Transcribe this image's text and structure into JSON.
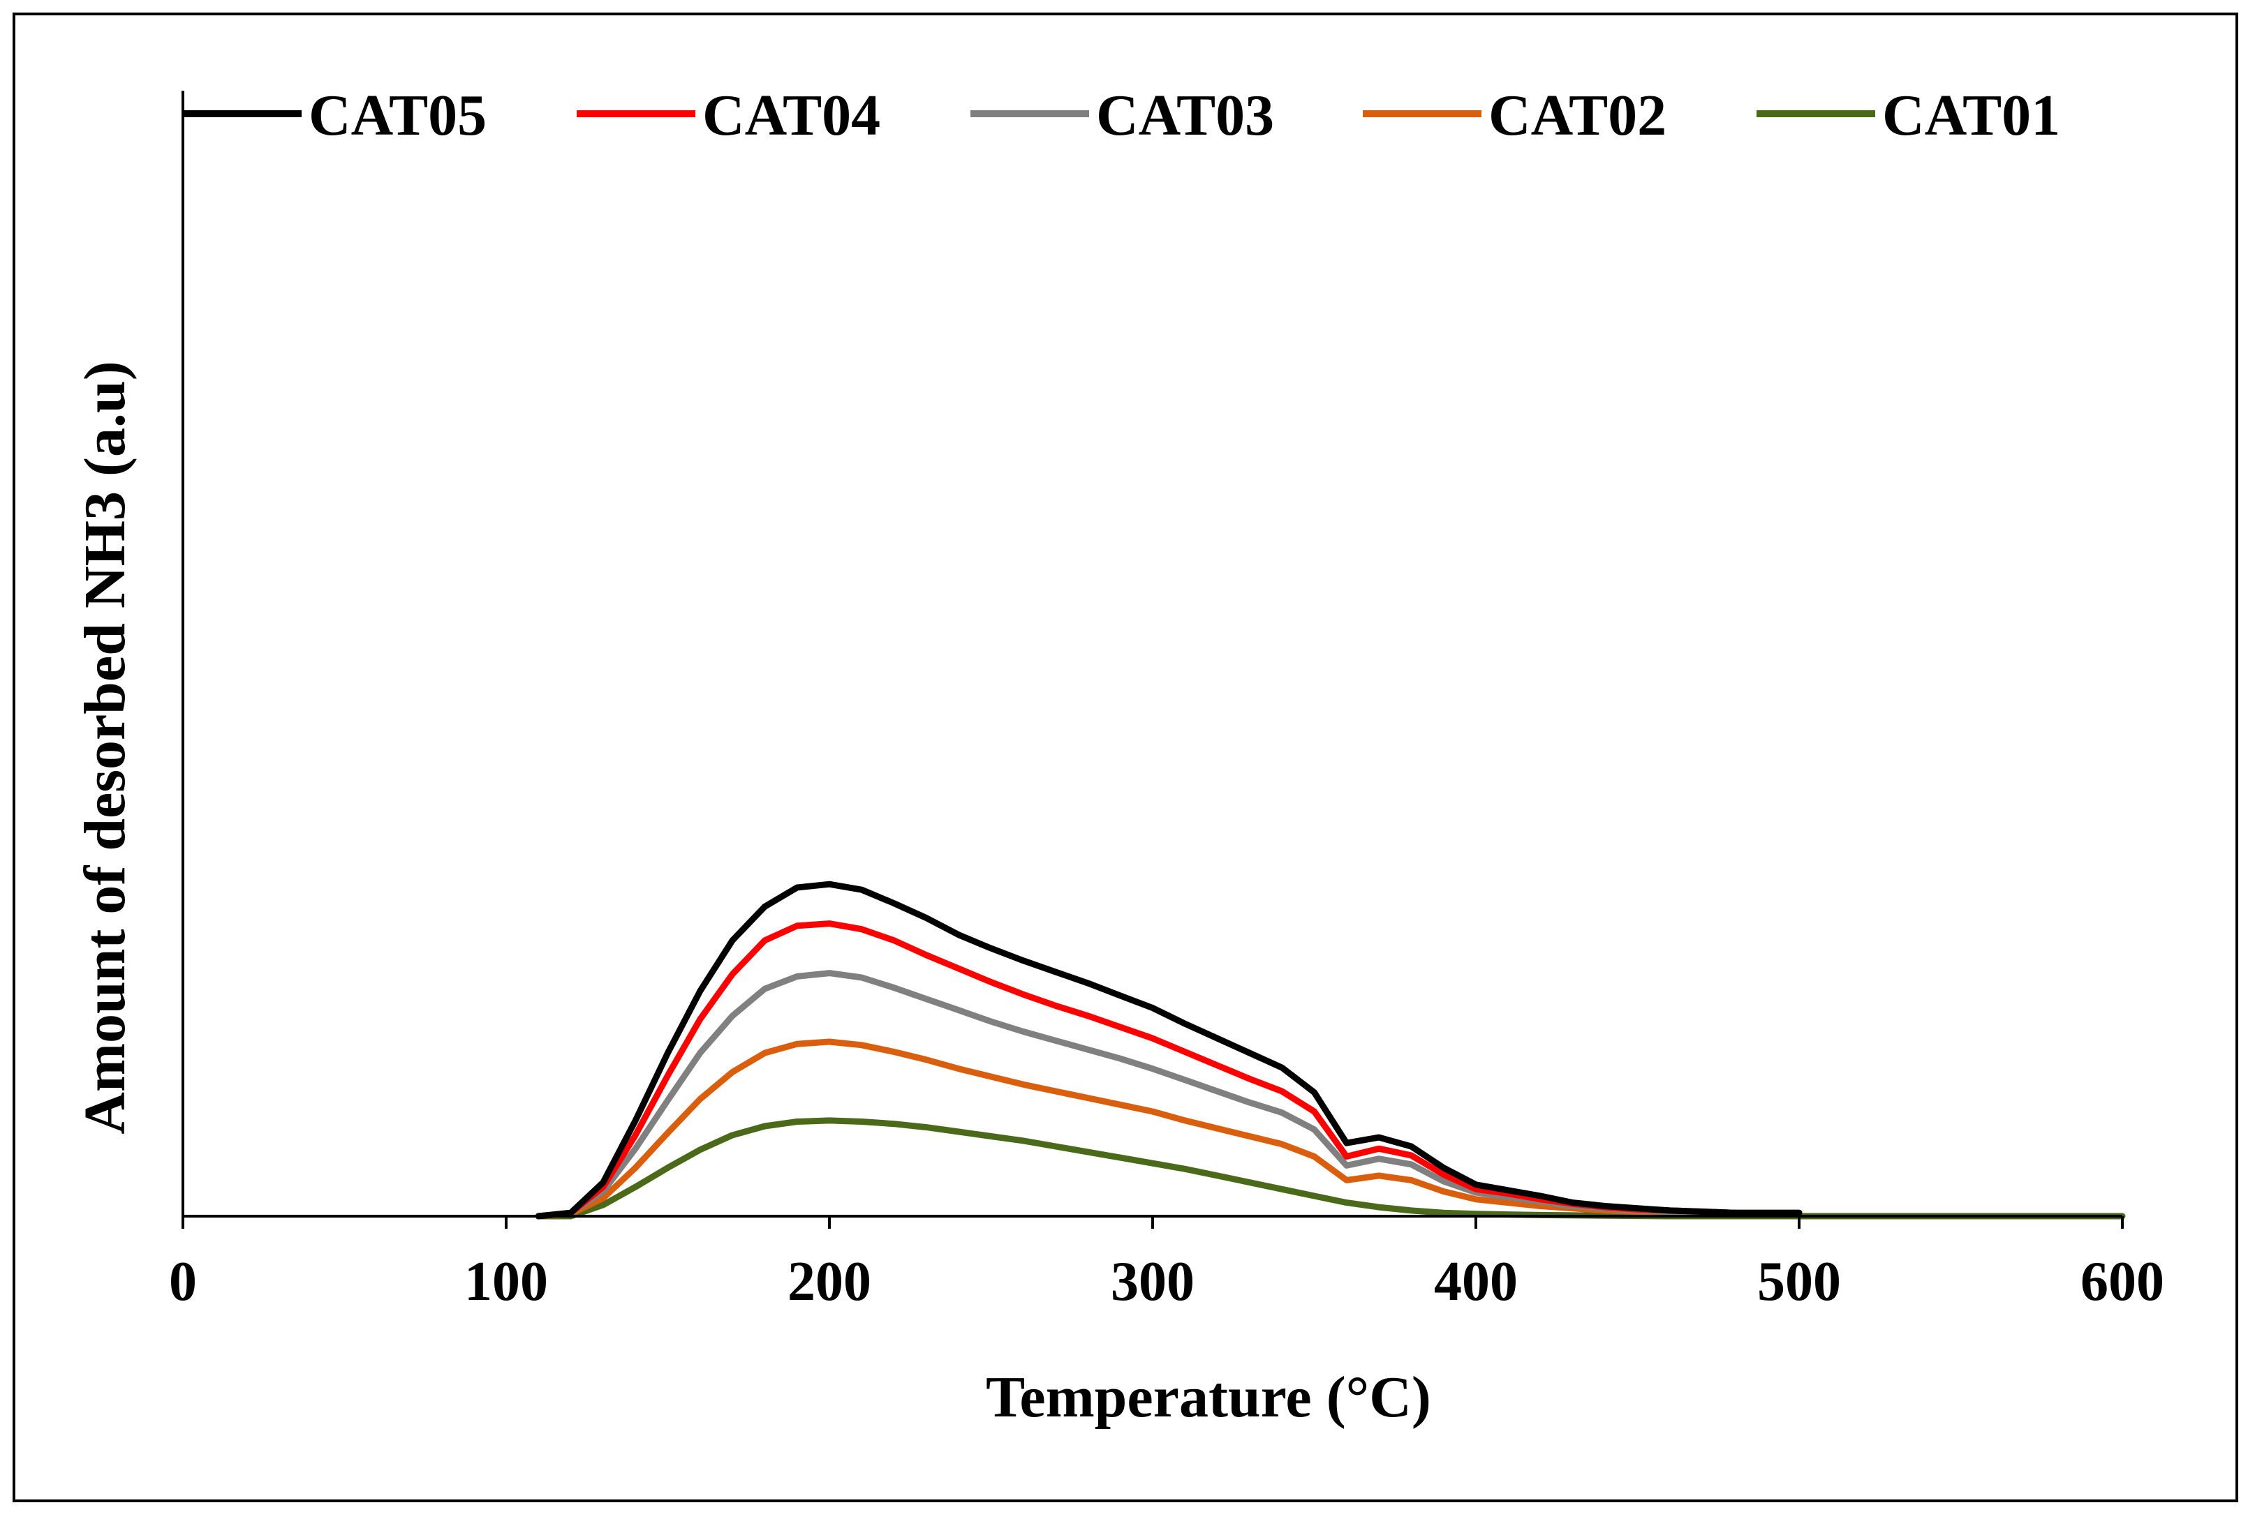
{
  "chart_data": {
    "type": "line",
    "title": "",
    "xlabel": "Temperature (°C)",
    "ylabel": "Amount of desorbed NH3 (a.u)",
    "xlim": [
      0,
      600
    ],
    "ylim": [
      0,
      100
    ],
    "x_ticks": [
      "0",
      "100",
      "200",
      "300",
      "400",
      "500",
      "600"
    ],
    "y_ticks_shown": false,
    "legend_position": "top",
    "series": [
      {
        "name": "CAT05",
        "color": "#000000",
        "x": [
          110,
          120,
          130,
          140,
          150,
          160,
          170,
          180,
          190,
          200,
          210,
          220,
          230,
          240,
          250,
          260,
          270,
          280,
          290,
          300,
          310,
          320,
          330,
          340,
          350,
          360,
          370,
          380,
          390,
          400,
          410,
          420,
          430,
          440,
          450,
          460,
          470,
          480,
          490,
          500
        ],
        "y": [
          0,
          0.3,
          3,
          8.5,
          14.5,
          20,
          24.5,
          27.5,
          29.2,
          29.5,
          29,
          27.8,
          26.5,
          25,
          23.8,
          22.7,
          21.7,
          20.7,
          19.6,
          18.5,
          17.1,
          15.8,
          14.5,
          13.2,
          11,
          6.5,
          7,
          6.2,
          4.3,
          2.8,
          2.3,
          1.8,
          1.2,
          0.9,
          0.7,
          0.5,
          0.4,
          0.3,
          0.3,
          0.3
        ]
      },
      {
        "name": "CAT04",
        "color": "#ff0000",
        "x": [
          110,
          120,
          130,
          140,
          150,
          160,
          170,
          180,
          190,
          200,
          210,
          220,
          230,
          240,
          250,
          260,
          270,
          280,
          290,
          300,
          310,
          320,
          330,
          340,
          350,
          360,
          370,
          380,
          390,
          400,
          410,
          420,
          430,
          440,
          450,
          460,
          470,
          480,
          490,
          500
        ],
        "y": [
          0,
          0.3,
          2.6,
          7.2,
          12.5,
          17.5,
          21.5,
          24.5,
          25.8,
          26,
          25.5,
          24.5,
          23.2,
          22,
          20.8,
          19.7,
          18.7,
          17.8,
          16.8,
          15.8,
          14.6,
          13.4,
          12.2,
          11.1,
          9.3,
          5.3,
          6,
          5.4,
          3.7,
          2.4,
          2,
          1.5,
          1.1,
          0.8,
          0.6,
          0.5,
          0.4,
          0.3,
          0.3,
          0.3
        ]
      },
      {
        "name": "CAT03",
        "color": "#808080",
        "x": [
          110,
          120,
          130,
          140,
          150,
          160,
          170,
          180,
          190,
          200,
          210,
          220,
          230,
          240,
          250,
          260,
          270,
          280,
          290,
          300,
          310,
          320,
          330,
          340,
          350,
          360,
          370,
          380,
          390,
          400,
          410,
          420,
          430,
          440,
          450,
          460,
          470,
          480,
          490,
          500
        ],
        "y": [
          0,
          0.3,
          2.2,
          6,
          10.3,
          14.5,
          17.8,
          20.2,
          21.3,
          21.6,
          21.2,
          20.3,
          19.3,
          18.3,
          17.3,
          16.4,
          15.6,
          14.8,
          14,
          13.1,
          12.1,
          11.1,
          10.1,
          9.2,
          7.7,
          4.5,
          5.1,
          4.6,
          3.1,
          2.1,
          1.7,
          1.3,
          0.9,
          0.7,
          0.5,
          0.4,
          0.3,
          0.3,
          0.2,
          0.2
        ]
      },
      {
        "name": "CAT02",
        "color": "#d95f0e",
        "x": [
          110,
          120,
          130,
          140,
          150,
          160,
          170,
          180,
          190,
          200,
          210,
          220,
          230,
          240,
          250,
          260,
          270,
          280,
          290,
          300,
          310,
          320,
          330,
          340,
          350,
          360,
          370,
          380,
          390,
          400,
          410,
          420,
          430,
          440,
          450,
          460,
          470,
          480,
          490,
          500
        ],
        "y": [
          0,
          0.2,
          1.6,
          4.3,
          7.4,
          10.4,
          12.8,
          14.5,
          15.3,
          15.5,
          15.2,
          14.6,
          13.9,
          13.1,
          12.4,
          11.7,
          11.1,
          10.5,
          9.9,
          9.3,
          8.5,
          7.8,
          7.1,
          6.4,
          5.3,
          3.2,
          3.6,
          3.2,
          2.2,
          1.5,
          1.2,
          0.9,
          0.7,
          0.5,
          0.4,
          0.3,
          0.3,
          0.2,
          0.2,
          0.2
        ]
      },
      {
        "name": "CAT01",
        "color": "#4a6a1a",
        "x": [
          110,
          120,
          130,
          140,
          150,
          160,
          170,
          180,
          190,
          200,
          210,
          220,
          230,
          240,
          250,
          260,
          270,
          280,
          290,
          300,
          310,
          320,
          330,
          340,
          350,
          360,
          370,
          380,
          390,
          400,
          420,
          440,
          460,
          480,
          500,
          520,
          540,
          560,
          580,
          600
        ],
        "y": [
          0,
          0,
          1,
          2.6,
          4.3,
          5.9,
          7.2,
          8,
          8.4,
          8.5,
          8.4,
          8.2,
          7.9,
          7.5,
          7.1,
          6.7,
          6.2,
          5.7,
          5.2,
          4.7,
          4.2,
          3.6,
          3,
          2.4,
          1.8,
          1.2,
          0.8,
          0.5,
          0.3,
          0.2,
          0.1,
          0.05,
          0,
          0,
          0,
          0,
          0,
          0,
          0,
          0
        ]
      }
    ]
  }
}
